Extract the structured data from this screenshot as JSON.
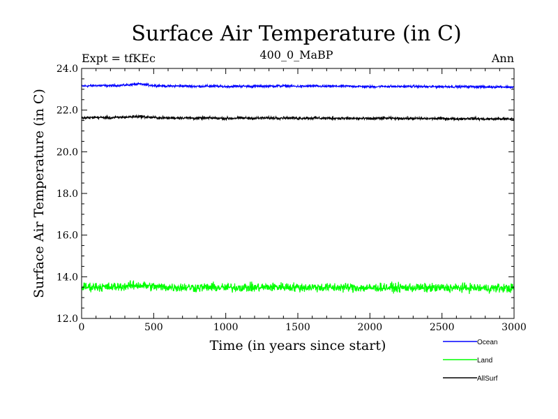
{
  "chart_data": {
    "type": "line",
    "title": "Surface Air Temperature (in C)",
    "subtitle": "400_0_MaBP",
    "left_header": "Expt = tfKEc",
    "right_header": "Ann",
    "xlabel": "Time (in years since start)",
    "ylabel": "Surface Air Temperature (in C)",
    "xlim": [
      0,
      3000
    ],
    "ylim": [
      12.0,
      24.0
    ],
    "x_ticks": [
      0,
      500,
      1000,
      1500,
      2000,
      2500,
      3000
    ],
    "x_tick_labels": [
      "0",
      "500",
      "1000",
      "1500",
      "2000",
      "2500",
      "3000"
    ],
    "y_ticks": [
      12.0,
      14.0,
      16.0,
      18.0,
      20.0,
      22.0,
      24.0
    ],
    "y_tick_labels": [
      "12.0",
      "14.0",
      "16.0",
      "18.0",
      "20.0",
      "22.0",
      "24.0"
    ],
    "grid": false,
    "legend_position": "bottom-right, outside plot",
    "series": [
      {
        "name": "Ocean",
        "color": "#0000ff",
        "x": [
          0,
          100,
          200,
          300,
          400,
          500,
          600,
          700,
          800,
          900,
          1000,
          1100,
          1200,
          1300,
          1400,
          1500,
          1600,
          1700,
          1800,
          1900,
          2000,
          2100,
          2200,
          2300,
          2400,
          2500,
          2600,
          2700,
          2800,
          2900,
          3000
        ],
        "values": [
          23.15,
          23.18,
          23.17,
          23.2,
          23.25,
          23.18,
          23.15,
          23.16,
          23.14,
          23.15,
          23.13,
          23.15,
          23.14,
          23.15,
          23.16,
          23.14,
          23.15,
          23.14,
          23.15,
          23.14,
          23.12,
          23.14,
          23.13,
          23.14,
          23.12,
          23.13,
          23.12,
          23.13,
          23.11,
          23.12,
          23.1
        ],
        "noise": 0.05
      },
      {
        "name": "AllSurf",
        "color": "#000000",
        "x": [
          0,
          100,
          200,
          300,
          400,
          500,
          600,
          700,
          800,
          900,
          1000,
          1100,
          1200,
          1300,
          1400,
          1500,
          1600,
          1700,
          1800,
          1900,
          2000,
          2100,
          2200,
          2300,
          2400,
          2500,
          2600,
          2700,
          2800,
          2900,
          3000
        ],
        "values": [
          21.62,
          21.65,
          21.63,
          21.66,
          21.7,
          21.64,
          21.62,
          21.63,
          21.61,
          21.62,
          21.6,
          21.62,
          21.61,
          21.62,
          21.63,
          21.61,
          21.62,
          21.61,
          21.61,
          21.6,
          21.59,
          21.61,
          21.6,
          21.6,
          21.59,
          21.6,
          21.58,
          21.6,
          21.57,
          21.58,
          21.57
        ],
        "noise": 0.06
      },
      {
        "name": "Land",
        "color": "#00ff00",
        "x": [
          0,
          100,
          200,
          300,
          400,
          500,
          600,
          700,
          800,
          900,
          1000,
          1100,
          1200,
          1300,
          1400,
          1500,
          1600,
          1700,
          1800,
          1900,
          2000,
          2100,
          2200,
          2300,
          2400,
          2500,
          2600,
          2700,
          2800,
          2900,
          3000
        ],
        "values": [
          13.5,
          13.52,
          13.5,
          13.55,
          13.6,
          13.52,
          13.5,
          13.5,
          13.48,
          13.5,
          13.47,
          13.5,
          13.48,
          13.5,
          13.52,
          13.49,
          13.5,
          13.48,
          13.49,
          13.48,
          13.46,
          13.49,
          13.47,
          13.48,
          13.46,
          13.47,
          13.46,
          13.47,
          13.45,
          13.46,
          13.45
        ],
        "noise": 0.2
      }
    ],
    "legend": [
      {
        "name": "Ocean",
        "color": "#0000ff"
      },
      {
        "name": "Land",
        "color": "#00ff00"
      },
      {
        "name": "AllSurf",
        "color": "#000000"
      }
    ]
  }
}
